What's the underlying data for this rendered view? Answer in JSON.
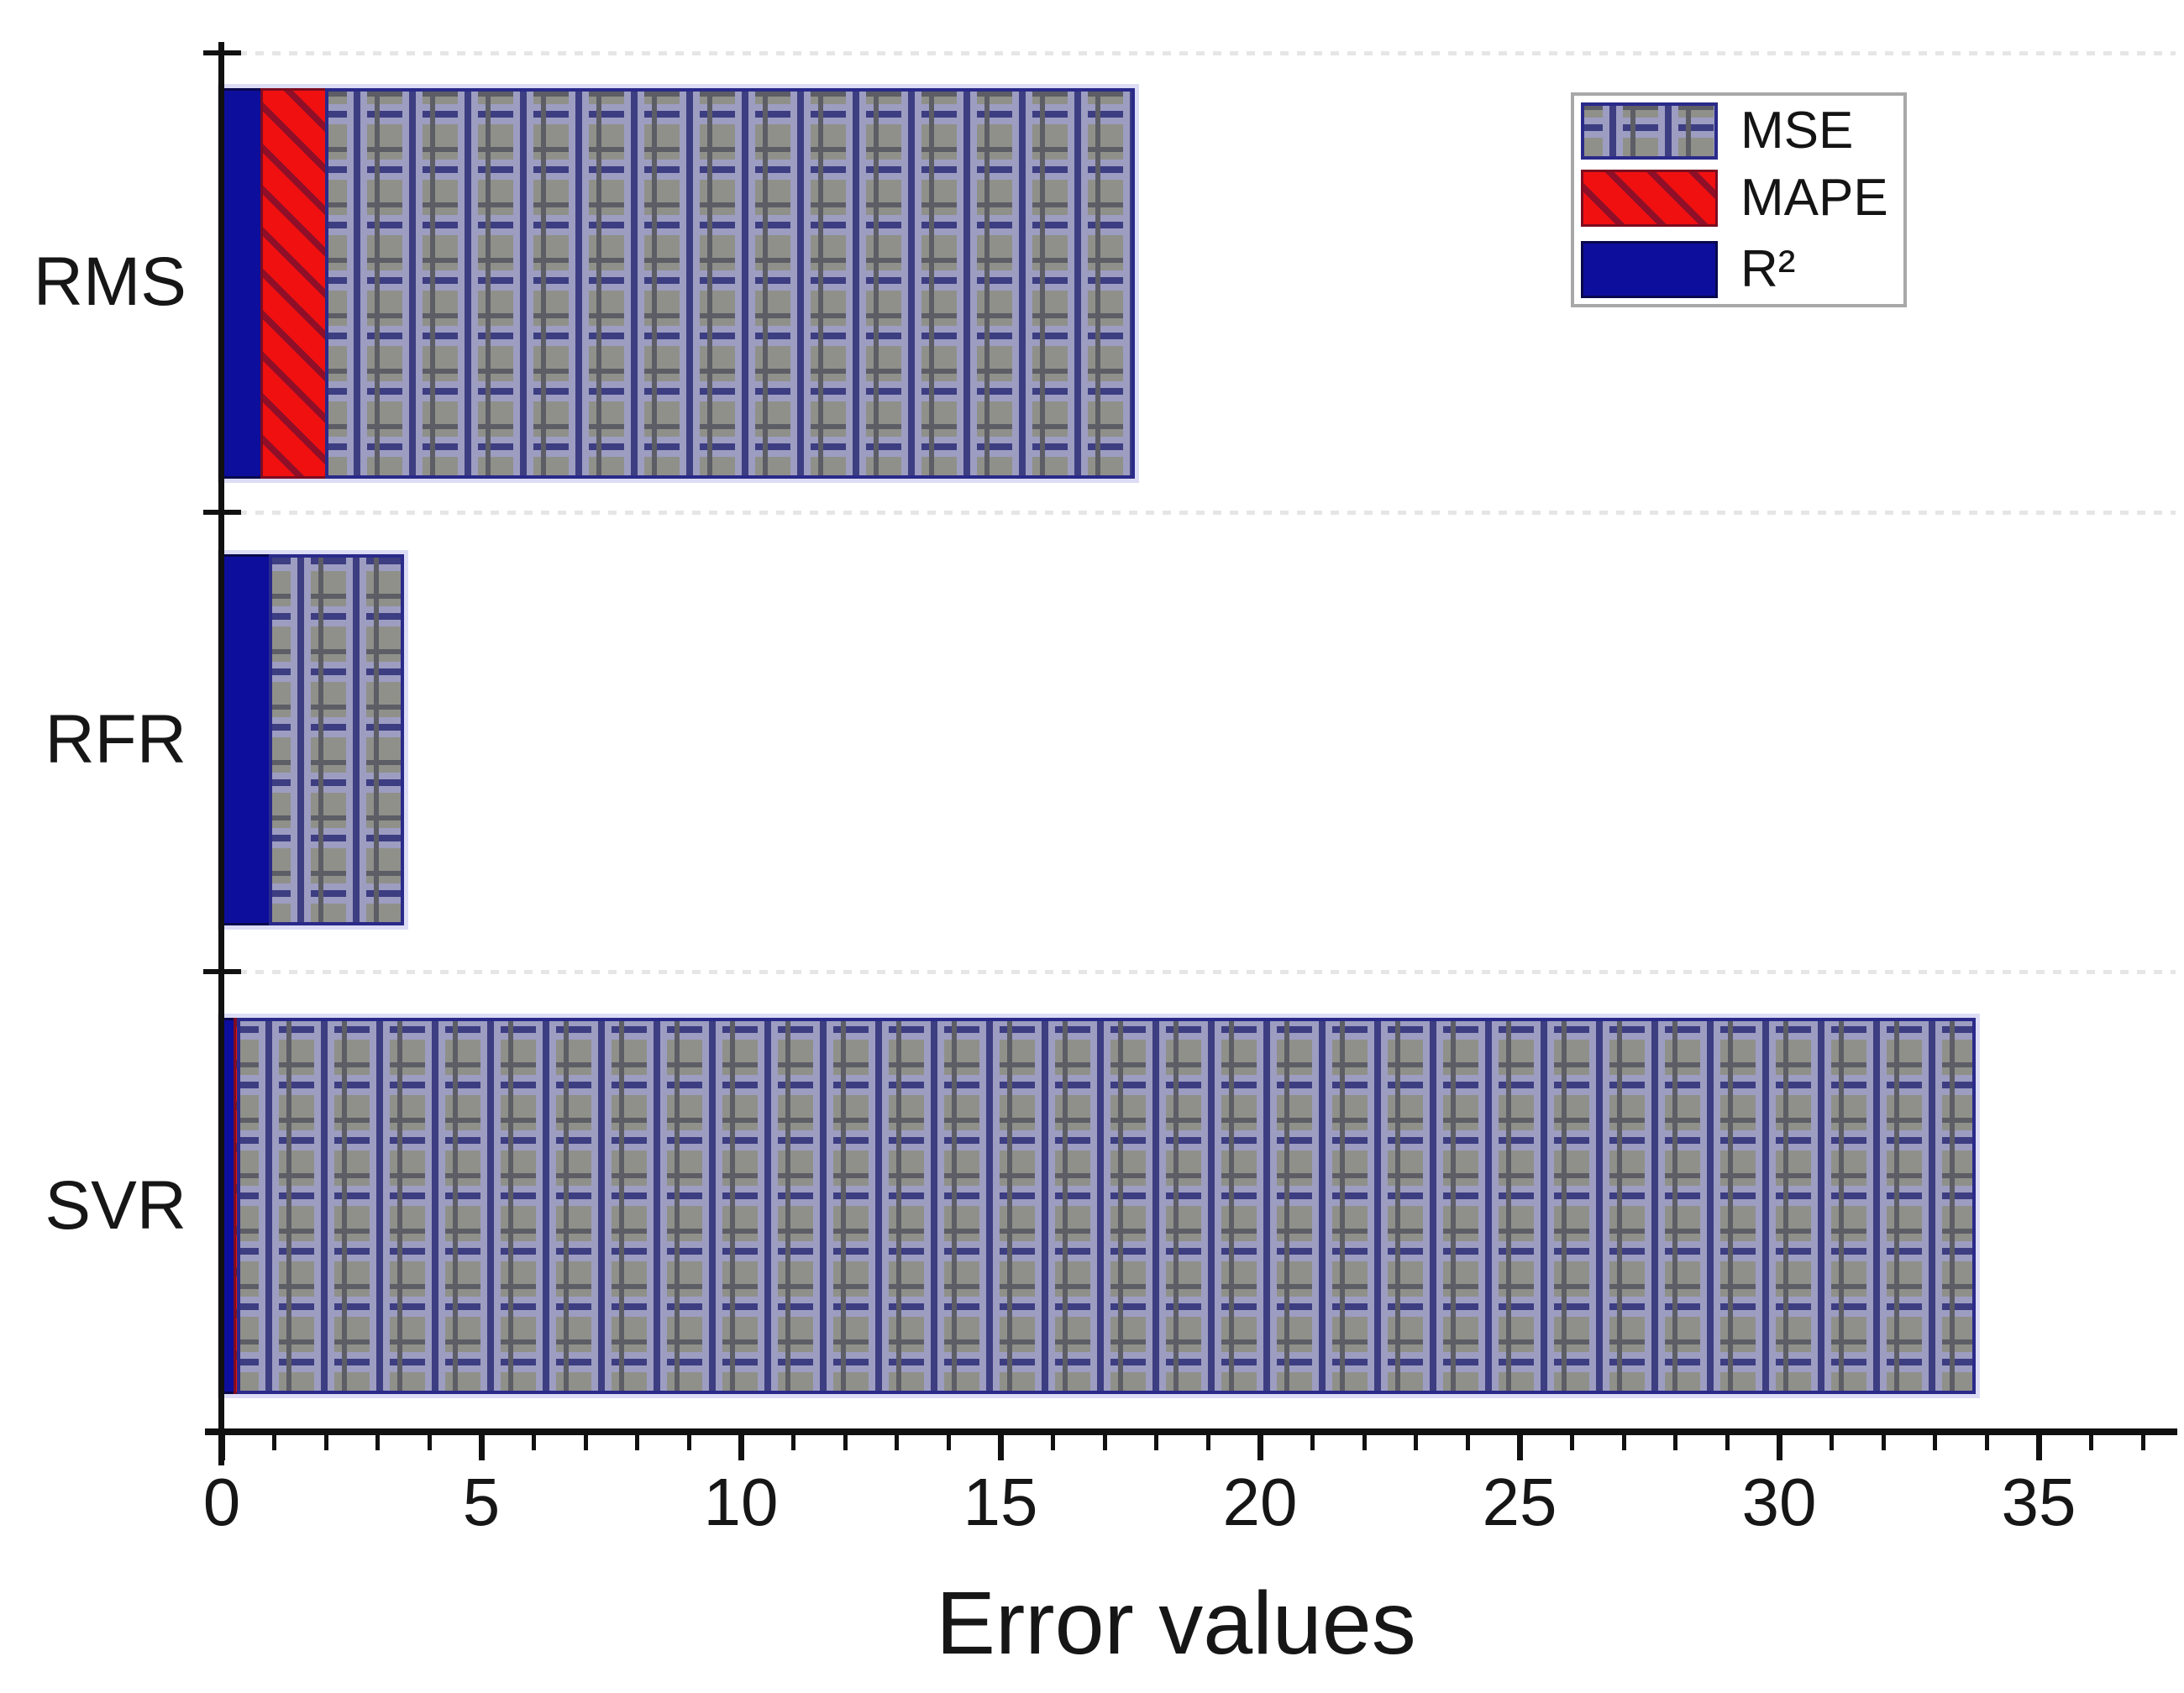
{
  "figure": {
    "background": "#ffffff",
    "title": ""
  },
  "chart_data": {
    "type": "bar",
    "orientation": "horizontal",
    "stacked": true,
    "categories": [
      "RMS",
      "RFR",
      "SVR"
    ],
    "series": [
      {
        "name": "R²",
        "pattern": "r2",
        "color": "#0e0e9c",
        "values": [
          0.8,
          0.95,
          0.27
        ]
      },
      {
        "name": "MAPE",
        "pattern": "mape",
        "color": "#f01010",
        "values": [
          1.3,
          0.0,
          0.12
        ]
      },
      {
        "name": "MSE",
        "pattern": "mse",
        "color": "#8f9089",
        "values": [
          15.6,
          2.6,
          33.5
        ]
      }
    ],
    "totals": [
      17.7,
      3.55,
      33.89
    ],
    "xlabel": "Error values",
    "ylabel": "",
    "xlim": [
      0,
      37.6
    ],
    "x_major_ticks": [
      0,
      5,
      10,
      15,
      20,
      25,
      30,
      35
    ],
    "x_minor_tick_step": 1,
    "x_minor_tick_max": 37,
    "grid": "faint dotted horizontal lines at category boundaries",
    "legend_position": "upper right"
  },
  "legend": {
    "entries": [
      {
        "label": "MSE",
        "pattern": "mse"
      },
      {
        "label": "MAPE",
        "pattern": "mape"
      },
      {
        "label": "R²",
        "pattern": "r2"
      }
    ]
  },
  "colors": {
    "axis": "#111111",
    "navy_blue": "#0e0e9c",
    "red_fill": "#f01010",
    "red_hatch_line": "#8f0f28",
    "gray_fill": "#8f9089",
    "grid_blue_line": "#3d3d82",
    "grid_dark_line": "#5d5d66",
    "dotted_gridline": "#e6e6e6",
    "legend_border": "#a8a8a8"
  }
}
